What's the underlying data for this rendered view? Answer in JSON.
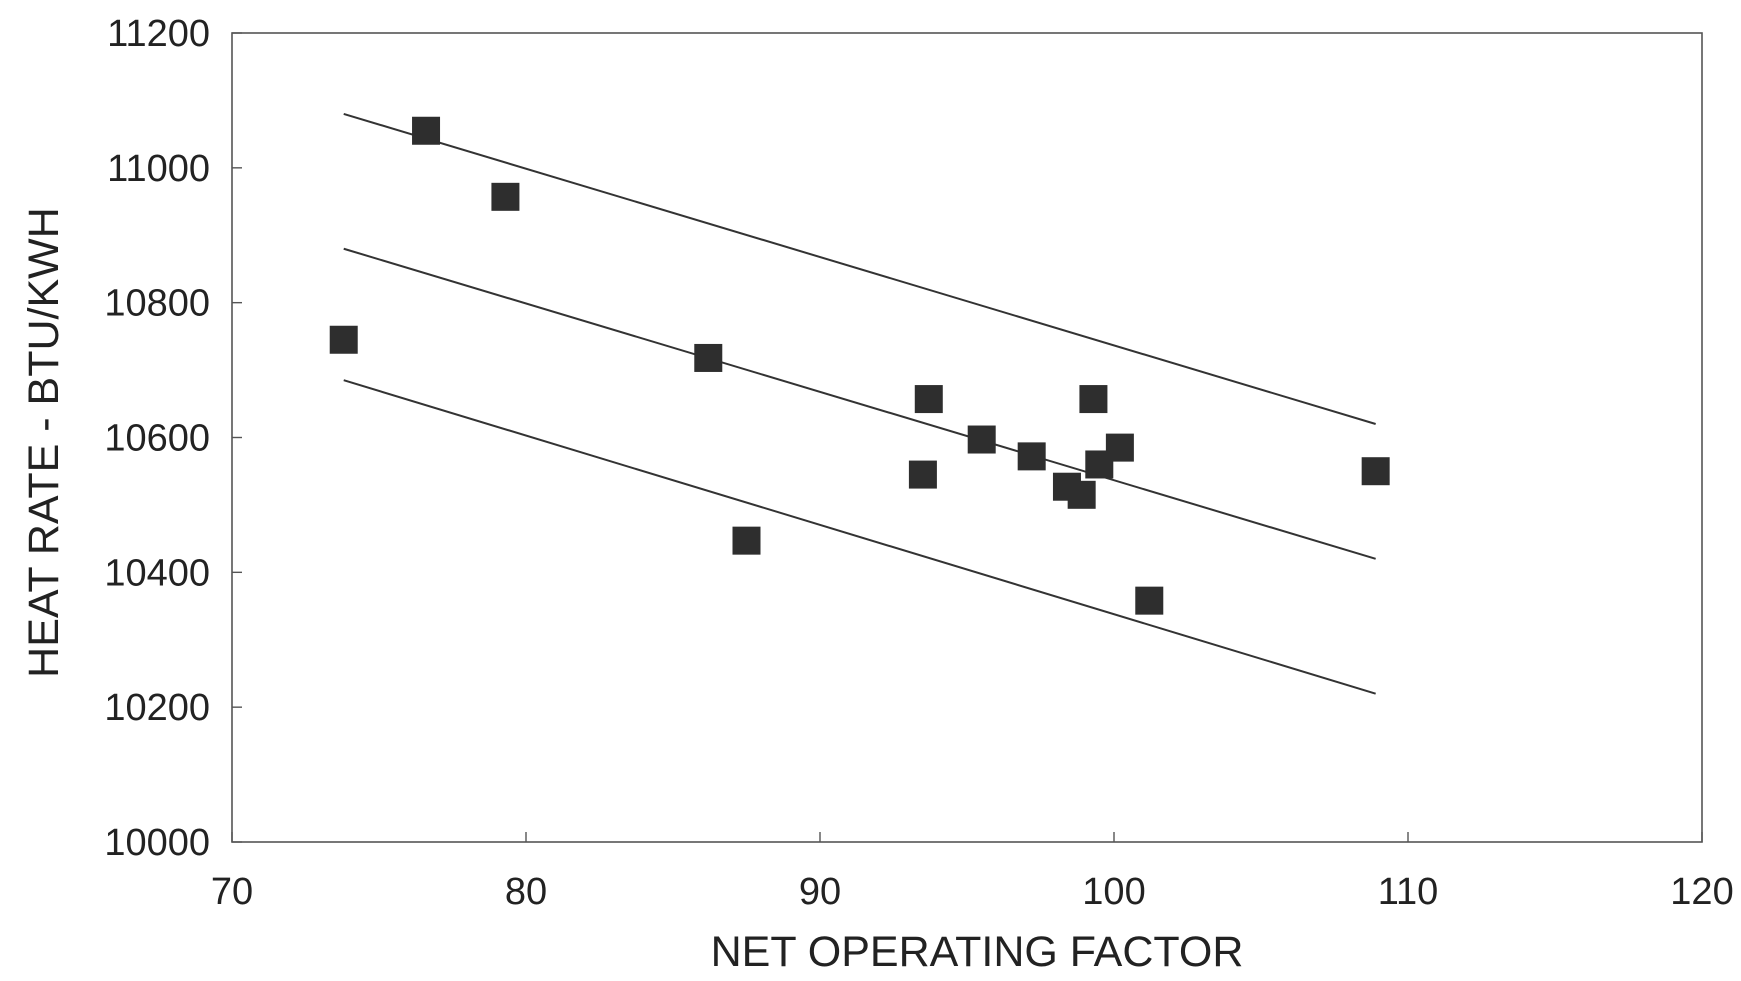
{
  "chart_data": {
    "type": "scatter",
    "title": "",
    "xlabel": "NET OPERATING FACTOR",
    "ylabel": "HEAT RATE - BTU/KWH",
    "xlim": [
      70,
      120
    ],
    "ylim": [
      10000,
      11200
    ],
    "x_ticks": [
      70,
      80,
      90,
      100,
      110,
      120
    ],
    "y_ticks": [
      10000,
      10200,
      10400,
      10600,
      10800,
      11000,
      11200
    ],
    "x_tick_labels": [
      "70",
      "80",
      "90",
      "100",
      "110",
      "120"
    ],
    "y_tick_labels": [
      "10000",
      "10200",
      "10400",
      "10600",
      "10800",
      "11000",
      "11200"
    ],
    "grid": false,
    "legend": "none",
    "marker": "square",
    "marker_color": "#2e2e2e",
    "line_color": "#333333",
    "points": [
      {
        "x": 73.8,
        "y": 10745
      },
      {
        "x": 76.6,
        "y": 11055
      },
      {
        "x": 79.3,
        "y": 10957
      },
      {
        "x": 86.2,
        "y": 10718
      },
      {
        "x": 87.5,
        "y": 10447
      },
      {
        "x": 93.5,
        "y": 10545
      },
      {
        "x": 93.7,
        "y": 10657
      },
      {
        "x": 95.5,
        "y": 10597
      },
      {
        "x": 97.2,
        "y": 10572
      },
      {
        "x": 98.4,
        "y": 10527
      },
      {
        "x": 98.9,
        "y": 10515
      },
      {
        "x": 99.3,
        "y": 10657
      },
      {
        "x": 99.5,
        "y": 10560
      },
      {
        "x": 100.2,
        "y": 10585
      },
      {
        "x": 101.2,
        "y": 10358
      },
      {
        "x": 108.9,
        "y": 10550
      }
    ],
    "lines": [
      {
        "x": [
          73.8,
          108.9
        ],
        "y": [
          11080,
          10620
        ]
      },
      {
        "x": [
          73.8,
          108.9
        ],
        "y": [
          10880,
          10420
        ]
      },
      {
        "x": [
          73.8,
          108.9
        ],
        "y": [
          10685,
          10220
        ]
      }
    ]
  }
}
